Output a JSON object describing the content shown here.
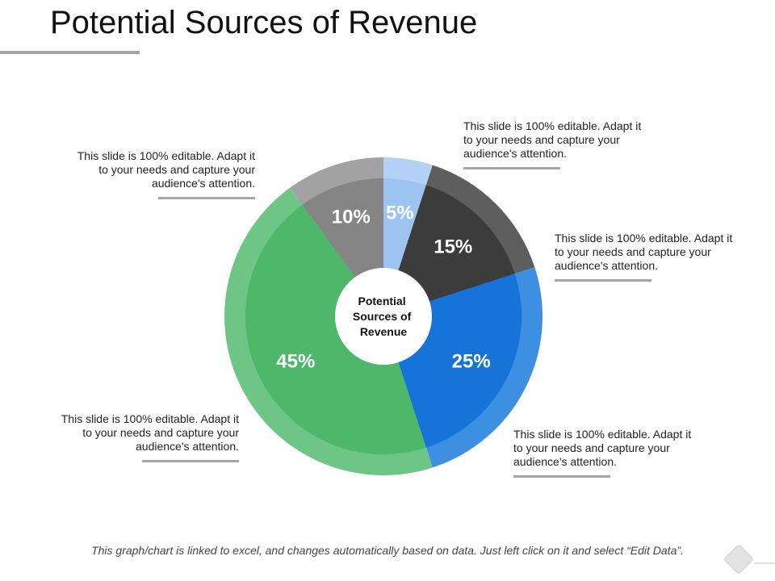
{
  "title": "Potential Sources of Revenue",
  "callouts": [
    "This slide is 100% editable. Adapt it to your needs and capture your audience's attention.",
    "This slide is 100% editable. Adapt it to your needs and capture your audience's attention.",
    "This slide is 100% editable. Adapt it to your needs and capture your audience's attention.",
    "This slide is 100% editable. Adapt it to your needs and capture your audience's attention.",
    "This slide is 100% editable. Adapt it to your needs and capture your audience's attention."
  ],
  "footnote": "This graph/chart is linked to excel, and changes automatically based on data.  Just left click on it and select “Edit Data”.",
  "chart_data": {
    "type": "pie",
    "center_label": [
      "Potential",
      "Sources of",
      "Revenue"
    ],
    "slices": [
      {
        "label": "5%",
        "value": 5,
        "color": "#9dc3f0",
        "ring_color": "#b4d2f5",
        "text_color": "#ffffff"
      },
      {
        "label": "15%",
        "value": 15,
        "color": "#3c3c3c",
        "ring_color": "#5e5e5e",
        "text_color": "#ffffff"
      },
      {
        "label": "25%",
        "value": 25,
        "color": "#1674d8",
        "ring_color": "#3d8fe2",
        "text_color": "#ffffff"
      },
      {
        "label": "45%",
        "value": 45,
        "color": "#4db86a",
        "ring_color": "#6dc685",
        "text_color": "#ffffff"
      },
      {
        "label": "10%",
        "value": 10,
        "color": "#858585",
        "ring_color": "#a2a2a2",
        "text_color": "#ffffff"
      }
    ]
  }
}
